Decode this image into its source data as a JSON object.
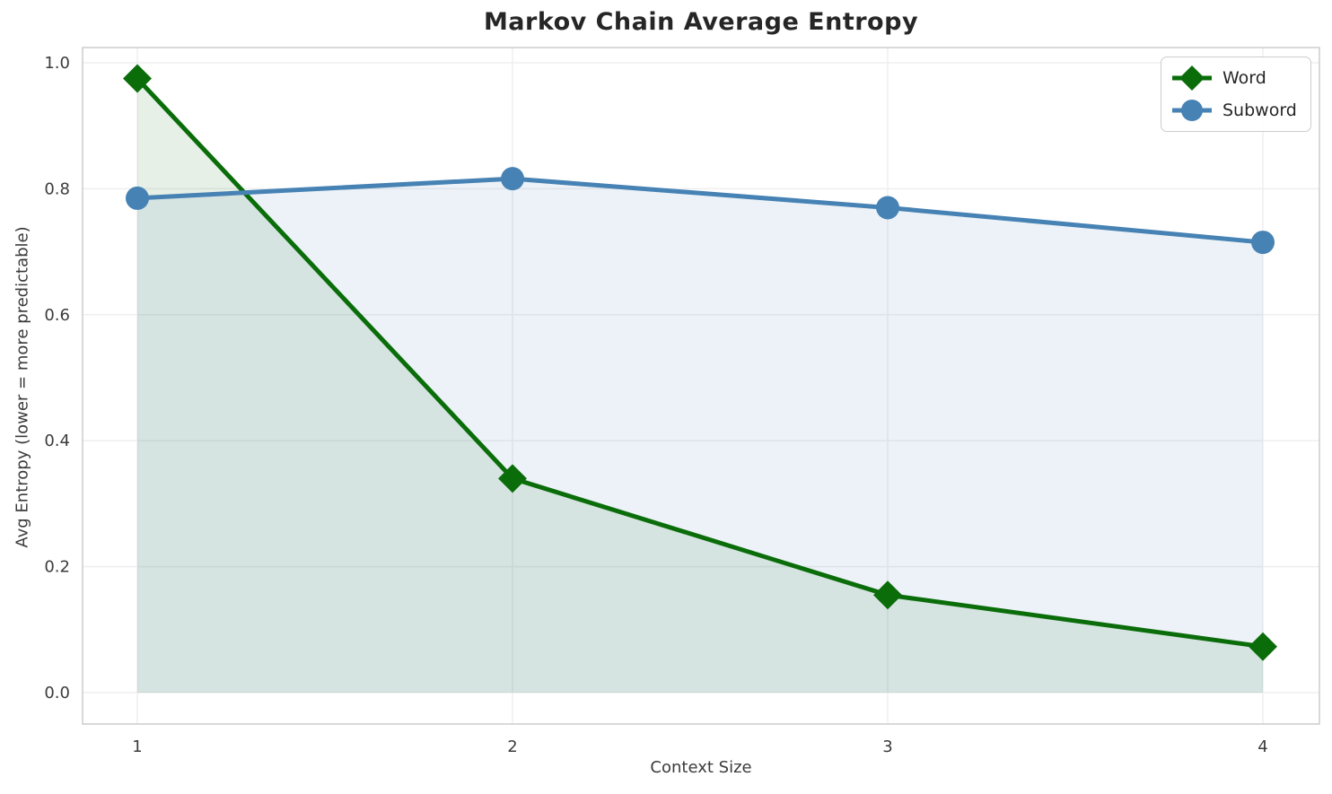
{
  "chart_data": {
    "type": "line",
    "title": "Markov Chain Average Entropy",
    "xlabel": "Context Size",
    "ylabel": "Avg Entropy (lower = more predictable)",
    "x": [
      1,
      2,
      3,
      4
    ],
    "x_tick_labels": [
      "1",
      "2",
      "3",
      "4"
    ],
    "y_tick_values": [
      0.0,
      0.2,
      0.4,
      0.6,
      0.8,
      1.0
    ],
    "y_tick_labels": [
      "0.0",
      "0.2",
      "0.4",
      "0.6",
      "0.8",
      "1.0"
    ],
    "xlim": [
      0.854,
      4.151
    ],
    "ylim": [
      -0.05,
      1.026
    ],
    "grid": true,
    "legend_position": "upper right",
    "series": [
      {
        "name": "Word",
        "values": [
          0.975,
          0.34,
          0.155,
          0.073
        ],
        "color": "#0a6d0a",
        "marker": "diamond",
        "fill_to_zero": true,
        "fill_opacity": 0.1
      },
      {
        "name": "Subword",
        "values": [
          0.785,
          0.816,
          0.77,
          0.715
        ],
        "color": "#4682b4",
        "marker": "circle",
        "fill_to_zero": true,
        "fill_opacity": 0.1
      }
    ]
  },
  "style_colors": {
    "gridline": "#efefef",
    "spine": "#c9c9c9",
    "tick_label": "#3b3b3b",
    "title": "#262626",
    "legend_border": "#cccccc"
  }
}
